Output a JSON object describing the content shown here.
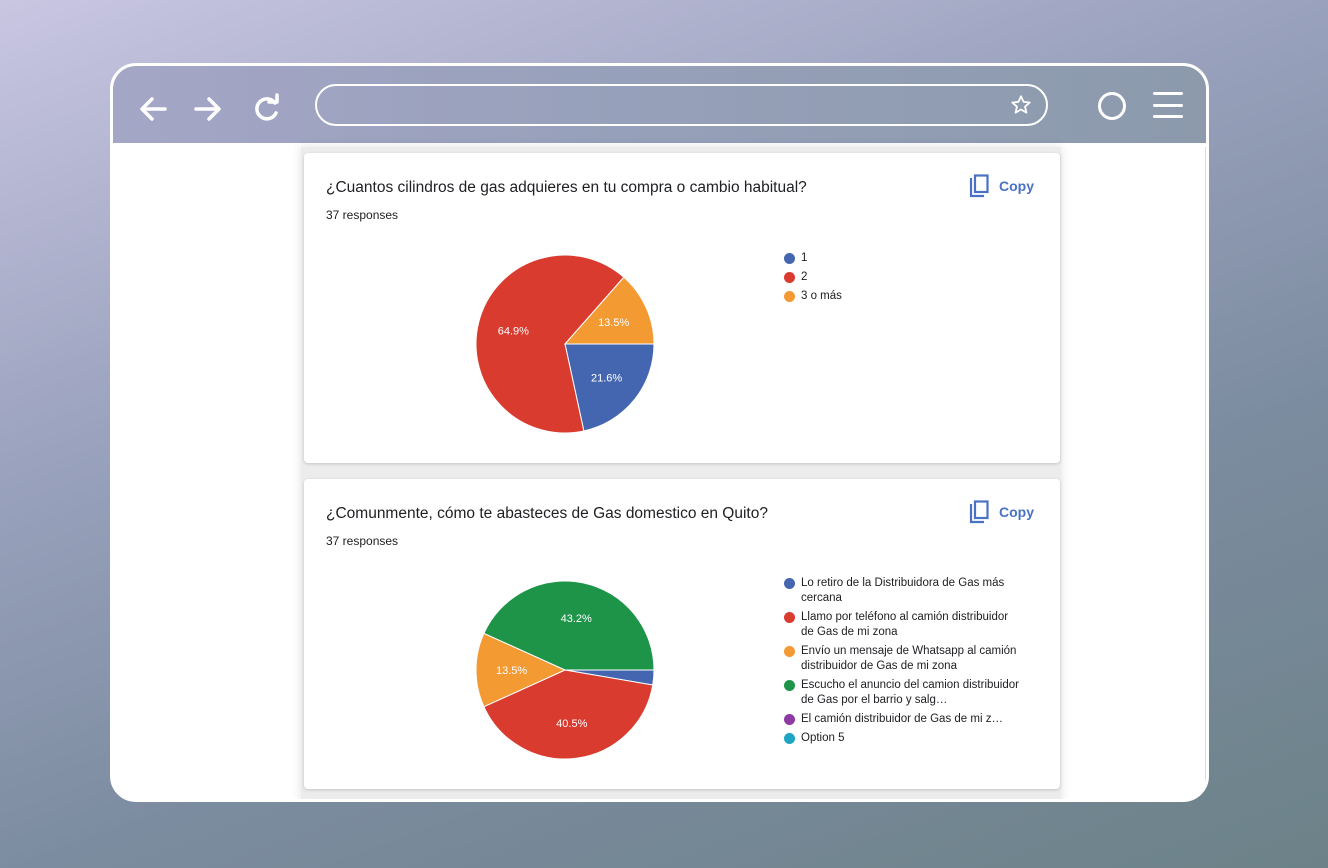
{
  "browser": {
    "icons": [
      "back-arrow-icon",
      "forward-arrow-icon",
      "reload-icon",
      "star-icon",
      "circle-icon",
      "hamburger-menu-icon"
    ],
    "address_value": ""
  },
  "cards": [
    {
      "title": "¿Cuantos cilindros de gas adquieres en tu compra o cambio habitual?",
      "responses": "37 responses",
      "copy_label": "Copy"
    },
    {
      "title": "¿Comunmente, cómo te abasteces de Gas domestico en Quito?",
      "responses": "37 responses",
      "copy_label": "Copy"
    }
  ],
  "chart_data": [
    {
      "type": "pie",
      "title": "¿Cuantos cilindros de gas adquieres en tu compra o cambio habitual?",
      "categories": [
        "1",
        "2",
        "3 o más"
      ],
      "values": [
        21.6,
        64.9,
        13.5
      ],
      "labels": [
        "21.6%",
        "64.9%",
        "13.5%"
      ],
      "colors": [
        "#4466b0",
        "#d93b2f",
        "#f39a33"
      ],
      "legend_position": "right"
    },
    {
      "type": "pie",
      "title": "¿Comunmente, cómo te abasteces de Gas domestico en Quito?",
      "categories": [
        "Lo retiro de la Distribuidora de Gas más cercana",
        "Llamo por teléfono al camión distribuidor de Gas de mi zona",
        "Envío un mensaje de Whatsapp al camión distribuidor de Gas de mi zona",
        "Escucho el anuncio del camion distribuidor de Gas por el barrio y salg…",
        "El camión distribuidor de Gas de mi z…",
        "Option 5"
      ],
      "values": [
        2.7,
        40.5,
        13.5,
        43.2,
        0,
        0
      ],
      "labels": [
        "",
        "40.5%",
        "13.5%",
        "43.2%",
        "",
        ""
      ],
      "colors": [
        "#4466b0",
        "#d93b2f",
        "#f39a33",
        "#1e9449",
        "#8e3aa3",
        "#1ea5c4"
      ],
      "legend_position": "right"
    }
  ]
}
